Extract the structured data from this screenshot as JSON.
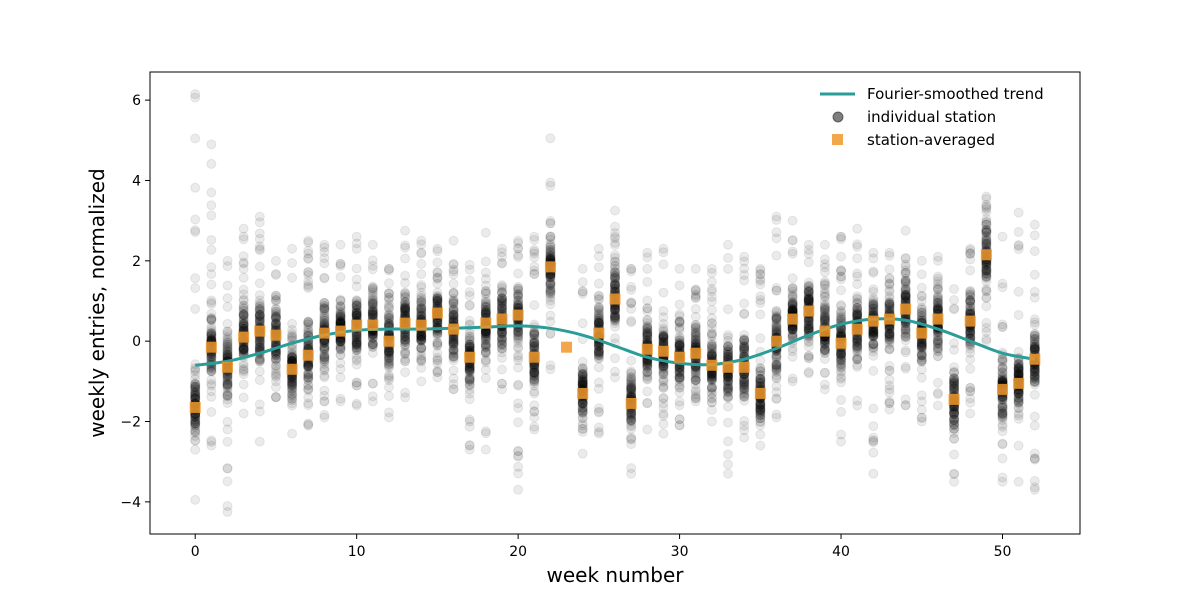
{
  "chart_data": {
    "type": "scatter",
    "xlabel": "week number",
    "ylabel": "weekly entries, normalized",
    "xlim": [
      -2.8,
      54.8
    ],
    "ylim": [
      -4.8,
      6.7
    ],
    "xticks": [
      0,
      10,
      20,
      30,
      40,
      50
    ],
    "yticks": [
      -4,
      -2,
      0,
      2,
      4,
      6
    ],
    "grid": false,
    "legend_position": "top-right",
    "colors": {
      "trend": "#2a9d98",
      "station_points": "#000000",
      "station_averaged": "#f0982a"
    },
    "legend": [
      {
        "label": "Fourier-smoothed trend",
        "kind": "line"
      },
      {
        "label": "individual station",
        "kind": "circle"
      },
      {
        "label": "station-averaged",
        "kind": "square"
      }
    ],
    "series": [
      {
        "name": "station-averaged",
        "x": [
          0,
          1,
          2,
          3,
          4,
          5,
          6,
          7,
          8,
          9,
          10,
          11,
          12,
          13,
          14,
          15,
          16,
          17,
          18,
          19,
          20,
          21,
          22,
          23,
          24,
          25,
          26,
          27,
          28,
          29,
          30,
          31,
          32,
          33,
          34,
          35,
          36,
          37,
          38,
          39,
          40,
          41,
          42,
          43,
          44,
          45,
          46,
          47,
          48,
          49,
          50,
          51,
          52
        ],
        "y": [
          -1.65,
          -0.15,
          -0.65,
          0.1,
          0.25,
          0.15,
          -0.7,
          -0.35,
          0.2,
          0.25,
          0.4,
          0.4,
          0.0,
          0.45,
          0.4,
          0.7,
          0.3,
          -0.4,
          0.45,
          0.55,
          0.65,
          -0.4,
          1.85,
          -0.15,
          -1.3,
          0.2,
          1.05,
          -1.55,
          -0.2,
          -0.25,
          -0.4,
          -0.3,
          -0.6,
          -0.65,
          -0.65,
          -1.3,
          0.0,
          0.55,
          0.75,
          0.25,
          -0.05,
          0.3,
          0.5,
          0.55,
          0.8,
          0.2,
          0.55,
          -1.45,
          0.5,
          2.15,
          -1.2,
          -1.05,
          -0.45
        ]
      },
      {
        "name": "Fourier-smoothed trend",
        "x": [
          0,
          2,
          4,
          6,
          8,
          10,
          12,
          14,
          16,
          18,
          20,
          22,
          24,
          26,
          28,
          30,
          32,
          34,
          36,
          38,
          40,
          42,
          44,
          46,
          48,
          50,
          52
        ],
        "y": [
          -0.6,
          -0.5,
          -0.3,
          -0.05,
          0.15,
          0.27,
          0.3,
          0.3,
          0.32,
          0.35,
          0.38,
          0.32,
          0.15,
          -0.12,
          -0.4,
          -0.55,
          -0.58,
          -0.45,
          -0.18,
          0.15,
          0.42,
          0.55,
          0.52,
          0.3,
          0.0,
          -0.3,
          -0.45
        ]
      }
    ],
    "individual_station_spread": {
      "x": [
        0,
        1,
        2,
        3,
        4,
        5,
        6,
        7,
        8,
        9,
        10,
        11,
        12,
        13,
        14,
        15,
        16,
        17,
        18,
        19,
        20,
        21,
        22,
        23,
        24,
        25,
        26,
        27,
        28,
        29,
        30,
        31,
        32,
        33,
        34,
        35,
        36,
        37,
        38,
        39,
        40,
        41,
        42,
        43,
        44,
        45,
        46,
        47,
        48,
        49,
        50,
        51,
        52
      ],
      "min": [
        -3.95,
        -2.6,
        -4.25,
        -1.8,
        -2.5,
        -1.4,
        -2.3,
        -2.1,
        -1.9,
        -1.5,
        -1.6,
        -1.5,
        -1.9,
        -1.4,
        -1.0,
        -0.9,
        -1.2,
        -2.7,
        -2.7,
        -1.2,
        -3.7,
        -2.2,
        -0.7,
        -0.15,
        -2.8,
        -2.3,
        -0.9,
        -3.3,
        -2.2,
        -2.3,
        -2.1,
        -1.5,
        -2.0,
        -3.3,
        -2.4,
        -2.6,
        -1.9,
        -1.0,
        -0.8,
        -1.2,
        -2.5,
        -1.6,
        -3.3,
        -1.7,
        -1.6,
        -2.0,
        -1.6,
        -3.5,
        -1.8,
        0.0,
        -3.5,
        -3.5,
        -3.7
      ],
      "max": [
        6.15,
        4.9,
        2.0,
        2.8,
        3.1,
        2.0,
        2.3,
        2.5,
        2.4,
        2.4,
        2.6,
        2.4,
        1.8,
        2.75,
        2.5,
        2.3,
        2.5,
        1.9,
        2.7,
        2.3,
        2.5,
        2.6,
        5.05,
        -0.15,
        1.8,
        2.3,
        3.25,
        1.8,
        2.2,
        2.3,
        1.8,
        1.8,
        1.8,
        2.4,
        2.1,
        1.8,
        3.1,
        3.0,
        2.4,
        2.4,
        2.6,
        2.8,
        2.2,
        2.2,
        2.75,
        2.0,
        2.1,
        1.3,
        2.3,
        3.6,
        2.6,
        3.2,
        2.9
      ]
    }
  }
}
